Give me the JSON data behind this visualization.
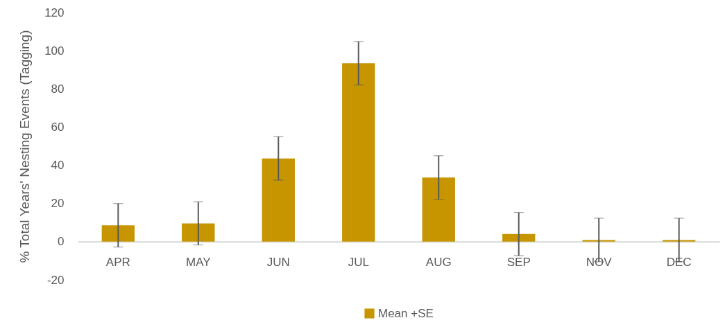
{
  "chart_data": {
    "type": "bar",
    "ylabel": "% Total  Years' Nesting Events (Tagging)",
    "categories": [
      "APR",
      "MAY",
      "JUN",
      "JUL",
      "AUG",
      "SEP",
      "NOV",
      "DEC"
    ],
    "series": [
      {
        "name": "Mean +SE",
        "color": "#c69500",
        "values": [
          8.6,
          9.6,
          43.6,
          93.4,
          33.6,
          4.0,
          0.9,
          0.9
        ],
        "errors": [
          11.4,
          11.3,
          11.4,
          11.4,
          11.4,
          11.3,
          11.4,
          11.4
        ]
      }
    ],
    "ylim": [
      -20,
      120
    ],
    "yticks": [
      -20,
      0,
      20,
      40,
      60,
      80,
      100,
      120
    ],
    "grid": false,
    "legend": "bottom"
  }
}
